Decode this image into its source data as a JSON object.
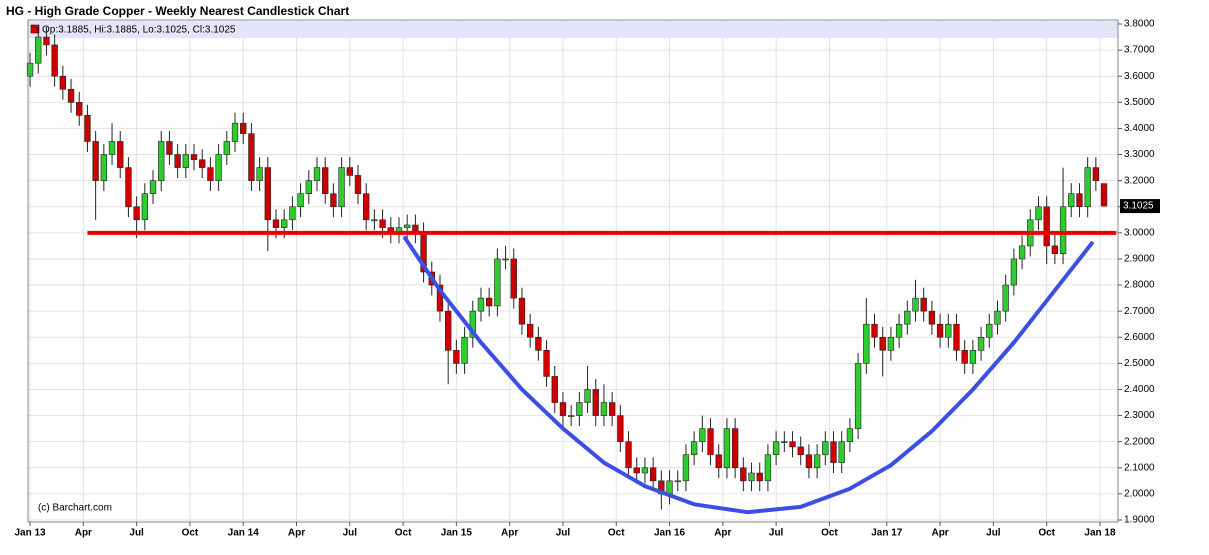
{
  "chart_data": {
    "type": "candlestick",
    "title": "HG - High Grade Copper - Weekly Nearest Candlestick Chart",
    "info_bar": "Op:3.1885, Hi:3.1885, Lo:3.1025, Cl:3.1025",
    "source": "(c) Barchart.com",
    "last_price": {
      "value": 3.1025,
      "label": "3.1025"
    },
    "up_color": "#2ecc2e",
    "down_color": "#cc0000",
    "grid": true,
    "xlim": [
      -0.5,
      265.4
    ],
    "xticks": [
      {
        "value": 0,
        "label": "Jan 13"
      },
      {
        "value": 13,
        "label": "Apr"
      },
      {
        "value": 26,
        "label": "Jul"
      },
      {
        "value": 39,
        "label": "Oct"
      },
      {
        "value": 52,
        "label": "Jan 14"
      },
      {
        "value": 65,
        "label": "Apr"
      },
      {
        "value": 78,
        "label": "Jul"
      },
      {
        "value": 91,
        "label": "Oct"
      },
      {
        "value": 104,
        "label": "Jan 15"
      },
      {
        "value": 117,
        "label": "Apr"
      },
      {
        "value": 130,
        "label": "Jul"
      },
      {
        "value": 143,
        "label": "Oct"
      },
      {
        "value": 156,
        "label": "Jan 16"
      },
      {
        "value": 169,
        "label": "Apr"
      },
      {
        "value": 182,
        "label": "Jul"
      },
      {
        "value": 195,
        "label": "Oct"
      },
      {
        "value": 209,
        "label": "Jan 17"
      },
      {
        "value": 222,
        "label": "Apr"
      },
      {
        "value": 235,
        "label": "Jul"
      },
      {
        "value": 248,
        "label": "Oct"
      },
      {
        "value": 261,
        "label": "Jan 18"
      }
    ],
    "ylim": [
      1.9,
      3.8
    ],
    "yticks": [
      {
        "value": 1.9,
        "label": "1.9000"
      },
      {
        "value": 2.0,
        "label": "2.0000"
      },
      {
        "value": 2.1,
        "label": "2.1000"
      },
      {
        "value": 2.2,
        "label": "2.2000"
      },
      {
        "value": 2.3,
        "label": "2.3000"
      },
      {
        "value": 2.4,
        "label": "2.4000"
      },
      {
        "value": 2.5,
        "label": "2.5000"
      },
      {
        "value": 2.6,
        "label": "2.6000"
      },
      {
        "value": 2.7,
        "label": "2.7000"
      },
      {
        "value": 2.8,
        "label": "2.8000"
      },
      {
        "value": 2.9,
        "label": "2.9000"
      },
      {
        "value": 3.0,
        "label": "3.0000"
      },
      {
        "value": 3.1,
        "label": "3.1000"
      },
      {
        "value": 3.2,
        "label": "3.2000"
      },
      {
        "value": 3.3,
        "label": "3.3000"
      },
      {
        "value": 3.4,
        "label": "3.4000"
      },
      {
        "value": 3.5,
        "label": "3.5000"
      },
      {
        "value": 3.6,
        "label": "3.6000"
      },
      {
        "value": 3.7,
        "label": "3.7000"
      },
      {
        "value": 3.8,
        "label": "3.8000"
      }
    ],
    "x": [
      0,
      2,
      4,
      6,
      8,
      10,
      12,
      14,
      16,
      18,
      20,
      22,
      24,
      26,
      28,
      30,
      32,
      34,
      36,
      38,
      40,
      42,
      44,
      46,
      48,
      50,
      52,
      54,
      56,
      58,
      60,
      62,
      64,
      66,
      68,
      70,
      72,
      74,
      76,
      78,
      80,
      82,
      84,
      86,
      88,
      90,
      92,
      94,
      96,
      98,
      100,
      102,
      104,
      106,
      108,
      110,
      112,
      114,
      116,
      118,
      120,
      122,
      124,
      126,
      128,
      130,
      132,
      134,
      136,
      138,
      140,
      142,
      144,
      146,
      148,
      150,
      152,
      154,
      156,
      158,
      160,
      162,
      164,
      166,
      168,
      170,
      172,
      174,
      176,
      178,
      180,
      182,
      184,
      186,
      188,
      190,
      192,
      194,
      196,
      198,
      200,
      202,
      204,
      206,
      208,
      210,
      212,
      214,
      216,
      218,
      220,
      222,
      224,
      226,
      228,
      230,
      232,
      234,
      236,
      238,
      240,
      242,
      244,
      246,
      248,
      250,
      252,
      254,
      256,
      258,
      260,
      262
    ],
    "ohlc": [
      [
        3.6,
        3.69,
        3.56,
        3.65
      ],
      [
        3.65,
        3.79,
        3.61,
        3.75
      ],
      [
        3.75,
        3.79,
        3.68,
        3.72
      ],
      [
        3.72,
        3.76,
        3.56,
        3.6
      ],
      [
        3.6,
        3.64,
        3.51,
        3.55
      ],
      [
        3.55,
        3.59,
        3.46,
        3.5
      ],
      [
        3.5,
        3.54,
        3.41,
        3.45
      ],
      [
        3.45,
        3.49,
        3.31,
        3.35
      ],
      [
        3.35,
        3.39,
        3.05,
        3.2
      ],
      [
        3.2,
        3.34,
        3.16,
        3.3
      ],
      [
        3.3,
        3.42,
        3.26,
        3.35
      ],
      [
        3.35,
        3.39,
        3.21,
        3.25
      ],
      [
        3.25,
        3.29,
        3.06,
        3.1
      ],
      [
        3.1,
        3.14,
        2.98,
        3.05
      ],
      [
        3.05,
        3.19,
        3.01,
        3.15
      ],
      [
        3.15,
        3.24,
        3.11,
        3.2
      ],
      [
        3.2,
        3.39,
        3.16,
        3.35
      ],
      [
        3.35,
        3.39,
        3.26,
        3.3
      ],
      [
        3.3,
        3.34,
        3.21,
        3.25
      ],
      [
        3.25,
        3.34,
        3.21,
        3.3
      ],
      [
        3.3,
        3.34,
        3.24,
        3.28
      ],
      [
        3.28,
        3.32,
        3.21,
        3.25
      ],
      [
        3.25,
        3.29,
        3.16,
        3.2
      ],
      [
        3.2,
        3.34,
        3.16,
        3.3
      ],
      [
        3.3,
        3.39,
        3.26,
        3.35
      ],
      [
        3.35,
        3.46,
        3.31,
        3.42
      ],
      [
        3.42,
        3.46,
        3.34,
        3.38
      ],
      [
        3.38,
        3.42,
        3.16,
        3.2
      ],
      [
        3.2,
        3.29,
        3.16,
        3.25
      ],
      [
        3.25,
        3.29,
        2.93,
        3.05
      ],
      [
        3.05,
        3.09,
        2.98,
        3.02
      ],
      [
        3.02,
        3.09,
        2.98,
        3.05
      ],
      [
        3.05,
        3.14,
        3.01,
        3.1
      ],
      [
        3.1,
        3.19,
        3.06,
        3.15
      ],
      [
        3.15,
        3.24,
        3.11,
        3.2
      ],
      [
        3.2,
        3.29,
        3.16,
        3.25
      ],
      [
        3.25,
        3.29,
        3.11,
        3.15
      ],
      [
        3.15,
        3.19,
        3.06,
        3.1
      ],
      [
        3.1,
        3.29,
        3.06,
        3.25
      ],
      [
        3.25,
        3.29,
        3.18,
        3.22
      ],
      [
        3.22,
        3.26,
        3.11,
        3.15
      ],
      [
        3.15,
        3.19,
        3.01,
        3.05
      ],
      [
        3.05,
        3.09,
        3.01,
        3.05
      ],
      [
        3.05,
        3.09,
        2.98,
        3.02
      ],
      [
        3.02,
        3.06,
        2.96,
        3.0
      ],
      [
        3.0,
        3.06,
        2.96,
        3.02
      ],
      [
        3.02,
        3.07,
        2.98,
        3.03
      ],
      [
        3.03,
        3.07,
        2.96,
        3.0
      ],
      [
        3.0,
        3.04,
        2.81,
        2.85
      ],
      [
        2.85,
        2.89,
        2.76,
        2.8
      ],
      [
        2.8,
        2.84,
        2.66,
        2.7
      ],
      [
        2.7,
        2.74,
        2.42,
        2.55
      ],
      [
        2.55,
        2.59,
        2.46,
        2.5
      ],
      [
        2.5,
        2.64,
        2.46,
        2.6
      ],
      [
        2.6,
        2.74,
        2.56,
        2.7
      ],
      [
        2.7,
        2.79,
        2.66,
        2.75
      ],
      [
        2.75,
        2.79,
        2.68,
        2.72
      ],
      [
        2.72,
        2.94,
        2.68,
        2.9
      ],
      [
        2.9,
        2.95,
        2.86,
        2.9
      ],
      [
        2.9,
        2.94,
        2.71,
        2.75
      ],
      [
        2.75,
        2.79,
        2.61,
        2.65
      ],
      [
        2.65,
        2.69,
        2.56,
        2.6
      ],
      [
        2.6,
        2.64,
        2.51,
        2.55
      ],
      [
        2.55,
        2.59,
        2.41,
        2.45
      ],
      [
        2.45,
        2.49,
        2.31,
        2.35
      ],
      [
        2.35,
        2.39,
        2.26,
        2.3
      ],
      [
        2.3,
        2.34,
        2.26,
        2.3
      ],
      [
        2.3,
        2.39,
        2.26,
        2.35
      ],
      [
        2.35,
        2.49,
        2.31,
        2.4
      ],
      [
        2.4,
        2.44,
        2.26,
        2.3
      ],
      [
        2.3,
        2.42,
        2.26,
        2.35
      ],
      [
        2.35,
        2.39,
        2.26,
        2.3
      ],
      [
        2.3,
        2.34,
        2.16,
        2.2
      ],
      [
        2.2,
        2.24,
        2.06,
        2.1
      ],
      [
        2.1,
        2.14,
        2.04,
        2.08
      ],
      [
        2.08,
        2.14,
        2.04,
        2.1
      ],
      [
        2.1,
        2.14,
        2.01,
        2.05
      ],
      [
        2.05,
        2.09,
        1.94,
        2.0
      ],
      [
        2.0,
        2.09,
        1.96,
        2.05
      ],
      [
        2.05,
        2.09,
        2.01,
        2.05
      ],
      [
        2.05,
        2.19,
        2.01,
        2.15
      ],
      [
        2.15,
        2.24,
        2.11,
        2.2
      ],
      [
        2.2,
        2.3,
        2.16,
        2.25
      ],
      [
        2.25,
        2.29,
        2.11,
        2.15
      ],
      [
        2.15,
        2.19,
        2.06,
        2.1
      ],
      [
        2.1,
        2.29,
        2.06,
        2.25
      ],
      [
        2.25,
        2.29,
        2.06,
        2.1
      ],
      [
        2.1,
        2.14,
        2.01,
        2.05
      ],
      [
        2.05,
        2.12,
        2.01,
        2.08
      ],
      [
        2.08,
        2.12,
        2.01,
        2.05
      ],
      [
        2.05,
        2.19,
        2.01,
        2.15
      ],
      [
        2.15,
        2.24,
        2.11,
        2.2
      ],
      [
        2.2,
        2.24,
        2.16,
        2.2
      ],
      [
        2.2,
        2.24,
        2.14,
        2.18
      ],
      [
        2.18,
        2.22,
        2.11,
        2.15
      ],
      [
        2.15,
        2.19,
        2.06,
        2.1
      ],
      [
        2.1,
        2.19,
        2.06,
        2.15
      ],
      [
        2.15,
        2.24,
        2.11,
        2.2
      ],
      [
        2.2,
        2.24,
        2.08,
        2.12
      ],
      [
        2.12,
        2.24,
        2.08,
        2.2
      ],
      [
        2.2,
        2.29,
        2.16,
        2.25
      ],
      [
        2.25,
        2.54,
        2.21,
        2.5
      ],
      [
        2.5,
        2.75,
        2.46,
        2.65
      ],
      [
        2.65,
        2.69,
        2.56,
        2.6
      ],
      [
        2.6,
        2.64,
        2.45,
        2.55
      ],
      [
        2.55,
        2.64,
        2.51,
        2.6
      ],
      [
        2.6,
        2.69,
        2.56,
        2.65
      ],
      [
        2.65,
        2.74,
        2.61,
        2.7
      ],
      [
        2.7,
        2.82,
        2.66,
        2.75
      ],
      [
        2.75,
        2.79,
        2.66,
        2.7
      ],
      [
        2.7,
        2.74,
        2.61,
        2.65
      ],
      [
        2.65,
        2.69,
        2.56,
        2.6
      ],
      [
        2.6,
        2.69,
        2.56,
        2.65
      ],
      [
        2.65,
        2.69,
        2.51,
        2.55
      ],
      [
        2.55,
        2.59,
        2.46,
        2.5
      ],
      [
        2.5,
        2.59,
        2.46,
        2.55
      ],
      [
        2.55,
        2.64,
        2.51,
        2.6
      ],
      [
        2.6,
        2.69,
        2.56,
        2.65
      ],
      [
        2.65,
        2.74,
        2.61,
        2.7
      ],
      [
        2.7,
        2.84,
        2.66,
        2.8
      ],
      [
        2.8,
        2.94,
        2.76,
        2.9
      ],
      [
        2.9,
        2.99,
        2.86,
        2.95
      ],
      [
        2.95,
        3.09,
        2.91,
        3.05
      ],
      [
        3.05,
        3.14,
        3.01,
        3.1
      ],
      [
        3.1,
        3.14,
        2.88,
        2.95
      ],
      [
        2.95,
        3.0,
        2.88,
        2.92
      ],
      [
        2.92,
        3.25,
        2.88,
        3.1
      ],
      [
        3.1,
        3.19,
        3.06,
        3.15
      ],
      [
        3.15,
        3.19,
        3.06,
        3.1
      ],
      [
        3.1,
        3.29,
        3.06,
        3.25
      ],
      [
        3.25,
        3.29,
        3.16,
        3.2
      ],
      [
        3.1885,
        3.1885,
        3.1025,
        3.1025
      ]
    ],
    "support_line": {
      "color": "#ee0000",
      "y": 3.0,
      "x": [
        14,
        265
      ]
    },
    "cup_curve": {
      "color": "#3a4fe6",
      "x": [
        91.5,
        100,
        110,
        120,
        130,
        140,
        150,
        162,
        175,
        188,
        200,
        210,
        220,
        230,
        240,
        250,
        259
      ],
      "y": [
        2.98,
        2.78,
        2.58,
        2.4,
        2.25,
        2.12,
        2.03,
        1.96,
        1.93,
        1.95,
        2.02,
        2.11,
        2.24,
        2.4,
        2.58,
        2.78,
        2.96
      ]
    }
  }
}
